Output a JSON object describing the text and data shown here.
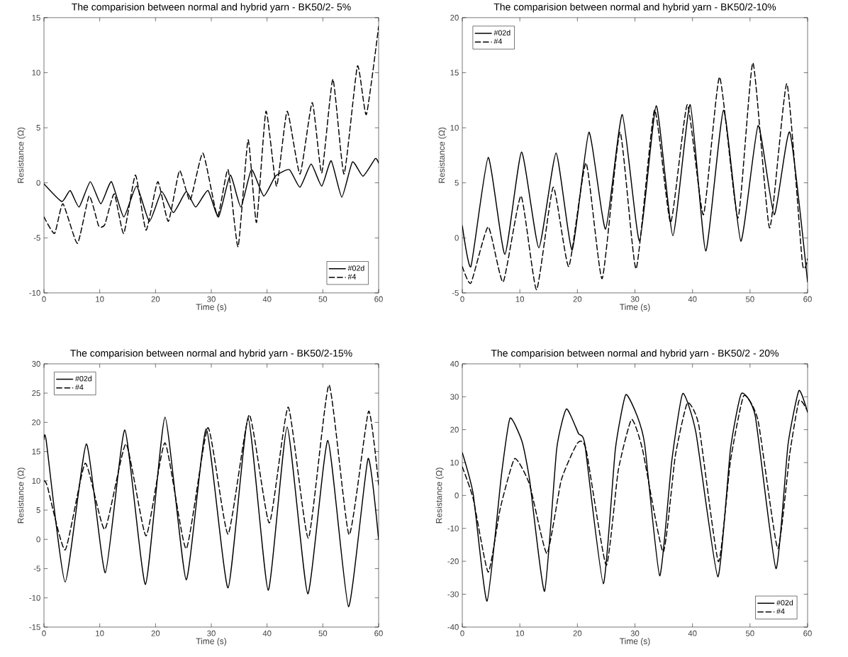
{
  "chart_data": [
    {
      "type": "line",
      "title": "The comparision between normal and hybrid yarn - BK50/2- 5%",
      "xlabel": "Time (s)",
      "ylabel": "Resistance (Ω)",
      "xlim": [
        0,
        60
      ],
      "ylim": [
        -10,
        15
      ],
      "xticks": [
        0,
        10,
        20,
        30,
        40,
        50,
        60
      ],
      "yticks": [
        -10,
        -5,
        0,
        5,
        10,
        15
      ],
      "grid": false,
      "legend": "bottom right",
      "series": [
        {
          "name": "#02d",
          "color": "#000000",
          "line_style": "solid",
          "x": [
            0,
            3.2,
            4.7,
            6.3,
            8.3,
            10.2,
            12.1,
            14.3,
            16.6,
            18.9,
            21.1,
            23.2,
            25.5,
            27.2,
            29.4,
            31.3,
            33.4,
            35.3,
            37.2,
            39.4,
            41.5,
            44.0,
            45.9,
            47.9,
            49.8,
            51.5,
            53.4,
            55.3,
            57.2,
            59.4,
            60
          ],
          "values": [
            -0.1,
            -1.7,
            -0.7,
            -2.2,
            0.1,
            -1.9,
            0.1,
            -3.1,
            -0.3,
            -3.5,
            -0.8,
            -2.7,
            -0.8,
            -2.2,
            -0.7,
            -3.1,
            0.7,
            -2.2,
            1.2,
            -1.2,
            0.6,
            1.2,
            -0.4,
            1.7,
            -0.3,
            2.0,
            -1.3,
            1.9,
            0.6,
            2.2,
            1.8
          ]
        },
        {
          "name": "#4",
          "color": "#000000",
          "line_style": "dashed",
          "x": [
            0,
            1.9,
            3.4,
            6.0,
            8.1,
            9.8,
            10.9,
            12.6,
            14.3,
            16.4,
            18.3,
            20.4,
            22.3,
            24.3,
            26.2,
            28.5,
            31.1,
            33.0,
            34.8,
            36.6,
            38.1,
            39.8,
            41.7,
            43.6,
            45.9,
            48.1,
            49.8,
            51.8,
            53.8,
            56.2,
            57.8,
            60
          ],
          "values": [
            -3.1,
            -4.6,
            -1.9,
            -5.5,
            -1.2,
            -3.9,
            -3.8,
            -1.0,
            -4.6,
            0.7,
            -4.3,
            0.1,
            -3.5,
            1.1,
            -1.6,
            2.7,
            -3.0,
            1.2,
            -5.8,
            3.9,
            -3.6,
            6.5,
            -0.3,
            6.5,
            0.8,
            7.3,
            0.9,
            9.4,
            0.8,
            10.6,
            6.2,
            14.2
          ]
        }
      ]
    },
    {
      "type": "line",
      "title": "The comparision between normal and hybrid yarn - BK50/2-10%",
      "xlabel": "Time (s)",
      "ylabel": "Resistance (Ω)",
      "xlim": [
        0,
        60
      ],
      "ylim": [
        -5,
        20
      ],
      "xticks": [
        0,
        10,
        20,
        30,
        40,
        50,
        60
      ],
      "yticks": [
        -5,
        0,
        5,
        10,
        15,
        20
      ],
      "grid": false,
      "legend": "top left",
      "series": [
        {
          "name": "#02d",
          "color": "#000000",
          "line_style": "solid",
          "x": [
            0,
            1.5,
            4.5,
            7.4,
            10.3,
            13.3,
            16.3,
            19.1,
            22.0,
            24.9,
            27.8,
            30.8,
            33.7,
            36.6,
            39.6,
            42.3,
            45.4,
            48.4,
            51.4,
            54.2,
            56.9,
            60
          ],
          "values": [
            1.1,
            -2.6,
            7.3,
            -1.5,
            7.8,
            -0.9,
            7.7,
            -1.1,
            9.6,
            0.8,
            11.2,
            -0.3,
            12.0,
            0.2,
            12.1,
            -1.2,
            11.6,
            -0.3,
            10.2,
            2.1,
            9.6,
            -4.0
          ]
        },
        {
          "name": "#4",
          "color": "#000000",
          "line_style": "dashed",
          "x": [
            0,
            1.5,
            4.5,
            7.1,
            10.2,
            12.9,
            15.8,
            18.5,
            21.5,
            24.3,
            27.4,
            30.2,
            33.4,
            36.2,
            39.1,
            41.9,
            44.7,
            47.9,
            50.5,
            53.4,
            56.4,
            59.1,
            60
          ],
          "values": [
            -2.6,
            -4.1,
            1.0,
            -4.0,
            3.8,
            -4.7,
            4.6,
            -2.6,
            6.8,
            -3.7,
            9.6,
            -2.8,
            11.6,
            1.4,
            12.1,
            2.1,
            14.6,
            1.8,
            15.9,
            0.9,
            14.0,
            -2.3,
            -1.9
          ]
        }
      ]
    },
    {
      "type": "line",
      "title": "The comparision between normal and hybrid yarn - BK50/2-15%",
      "xlabel": "Time (s)",
      "ylabel": "Resistance (Ω)",
      "xlim": [
        0,
        60
      ],
      "ylim": [
        -15,
        30
      ],
      "xticks": [
        0,
        10,
        20,
        30,
        40,
        50,
        60
      ],
      "yticks": [
        -15,
        -10,
        -5,
        0,
        5,
        10,
        15,
        20,
        25,
        30
      ],
      "grid": false,
      "legend": "top left",
      "series": [
        {
          "name": "#02d",
          "color": "#000000",
          "line_style": "solid",
          "x": [
            0,
            0.4,
            3.8,
            7.6,
            11.0,
            14.5,
            18.2,
            21.7,
            25.5,
            29.1,
            33.0,
            36.6,
            40.2,
            43.6,
            47.3,
            50.9,
            54.6,
            58.1,
            60
          ],
          "values": [
            17.1,
            16.9,
            -7.3,
            16.3,
            -5.7,
            18.7,
            -7.7,
            20.9,
            -6.9,
            18.9,
            -8.3,
            20.7,
            -8.7,
            19.2,
            -9.3,
            16.9,
            -11.5,
            13.8,
            0
          ]
        },
        {
          "name": "#4",
          "color": "#000000",
          "line_style": "dashed",
          "x": [
            0,
            0.6,
            3.8,
            7.4,
            10.9,
            14.7,
            18.3,
            21.7,
            25.5,
            29.4,
            33.0,
            36.8,
            40.4,
            43.8,
            47.4,
            51.1,
            54.7,
            58.2,
            60
          ],
          "values": [
            10.0,
            9.1,
            -1.8,
            13.0,
            1.7,
            16.3,
            0.6,
            16.5,
            -1.6,
            19.1,
            0.9,
            21.3,
            2.8,
            22.6,
            0.2,
            26.4,
            0.8,
            21.9,
            9.3
          ]
        }
      ]
    },
    {
      "type": "line",
      "title": "The comparision between normal and hybrid yarn - BK50/2 - 20%",
      "xlabel": "Time (s)",
      "ylabel": "Resistance (Ω)",
      "xlim": [
        0,
        60
      ],
      "ylim": [
        -40,
        40
      ],
      "xticks": [
        0,
        10,
        20,
        30,
        40,
        50,
        60
      ],
      "yticks": [
        -40,
        -30,
        -20,
        -10,
        0,
        10,
        20,
        30,
        40
      ],
      "grid": false,
      "legend": "bottom right",
      "series": [
        {
          "name": "#02d",
          "color": "#000000",
          "line_style": "solid",
          "x": [
            0,
            1.9,
            4.3,
            6.8,
            8.3,
            10.4,
            11.7,
            14.3,
            16.4,
            18.1,
            20.2,
            21.3,
            24.5,
            26.6,
            28.4,
            30.4,
            31.7,
            34.3,
            36.4,
            38.3,
            40.6,
            44.4,
            46.6,
            48.5,
            50.9,
            54.5,
            56.6,
            58.5,
            60
          ],
          "values": [
            13.0,
            0.4,
            -32.1,
            6.2,
            23.5,
            16.3,
            4.7,
            -29.1,
            14.1,
            26.3,
            18.8,
            15.5,
            -26.8,
            14.1,
            30.6,
            24.1,
            15.5,
            -24.4,
            10.5,
            31.0,
            19.1,
            -24.7,
            14.1,
            31.0,
            24.2,
            -22.2,
            15.5,
            31.9,
            25.3
          ]
        },
        {
          "name": "#4",
          "color": "#000000",
          "line_style": "dashed",
          "x": [
            0,
            1.9,
            4.5,
            6.6,
            9.1,
            11.7,
            14.7,
            17.2,
            20.0,
            21.5,
            25.0,
            27.1,
            29.4,
            31.3,
            34.9,
            37.0,
            39.1,
            41.1,
            44.5,
            46.6,
            48.9,
            51.4,
            54.8,
            56.9,
            58.5,
            59.8
          ],
          "values": [
            8.7,
            -1.0,
            -23.3,
            -3.9,
            11.2,
            3.3,
            -17.6,
            4.7,
            15.9,
            14.1,
            -21.2,
            7.6,
            23.1,
            14.1,
            -17.2,
            11.9,
            28.1,
            21.3,
            -20.1,
            10.5,
            30.3,
            22.7,
            -16.1,
            12.7,
            28.8,
            26.3
          ]
        }
      ]
    }
  ]
}
